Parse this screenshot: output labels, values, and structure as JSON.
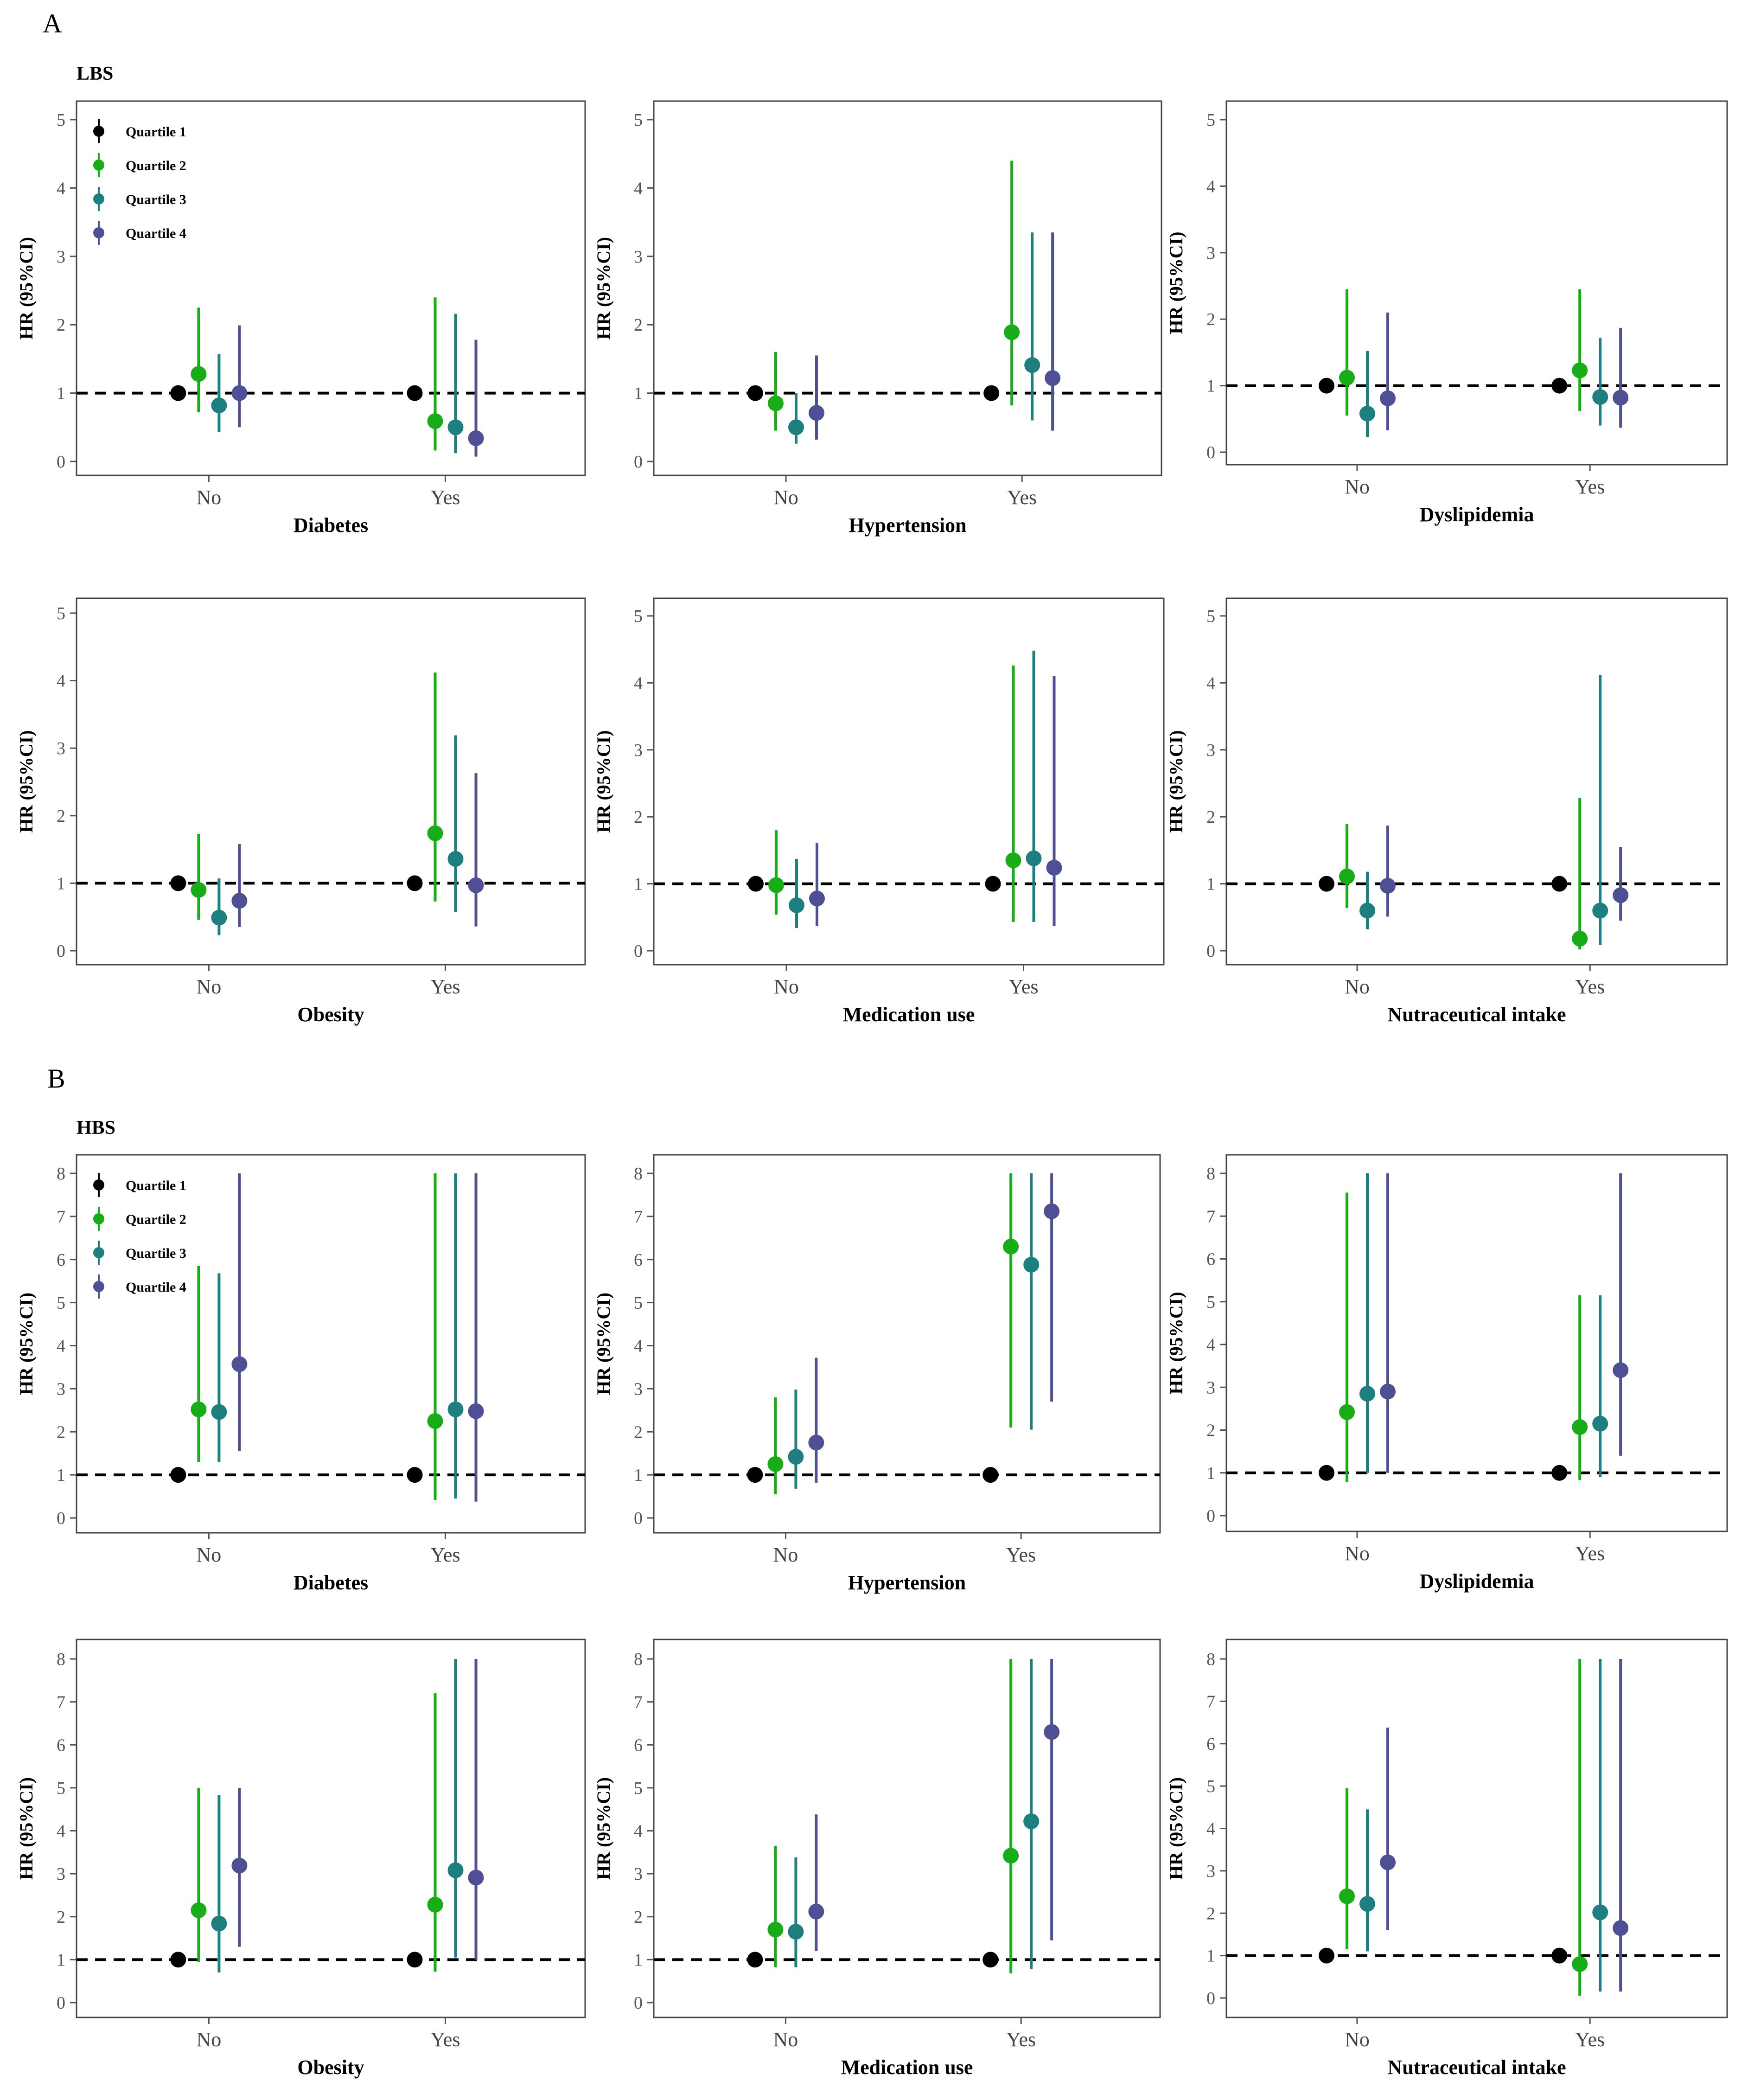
{
  "figure": {
    "panel_a_letter": "A",
    "panel_b_letter": "B",
    "panel_a_subtitle": "LBS",
    "panel_b_subtitle": "HBS"
  },
  "colors": {
    "Quartile 1": "#000000",
    "Quartile 2": "#17ad17",
    "Quartile 3": "#1d7f7f",
    "Quartile 4": "#4f4f96",
    "reference_line": "#000000",
    "frame": "#444444"
  },
  "chart_data": [
    {
      "id": "A-diabetes",
      "group": "A",
      "type": "scatter",
      "xlabel": "Diabetes",
      "ylabel": "HR (95%CI)",
      "ylim": [
        0,
        5
      ],
      "yticks": [
        0,
        1,
        2,
        3,
        4,
        5
      ],
      "categories": [
        "No",
        "Yes"
      ],
      "reference_line": 1,
      "legend": "top-left",
      "series": [
        {
          "name": "Quartile 1",
          "points": [
            {
              "hr": 1.0,
              "lo": 1.0,
              "hi": 1.0
            },
            {
              "hr": 1.0,
              "lo": 1.0,
              "hi": 1.0
            }
          ]
        },
        {
          "name": "Quartile 2",
          "points": [
            {
              "hr": 1.28,
              "lo": 0.72,
              "hi": 2.25
            },
            {
              "hr": 0.59,
              "lo": 0.16,
              "hi": 2.4
            }
          ]
        },
        {
          "name": "Quartile 3",
          "points": [
            {
              "hr": 0.82,
              "lo": 0.43,
              "hi": 1.57
            },
            {
              "hr": 0.5,
              "lo": 0.12,
              "hi": 2.16
            }
          ]
        },
        {
          "name": "Quartile 4",
          "points": [
            {
              "hr": 1.0,
              "lo": 0.5,
              "hi": 1.99
            },
            {
              "hr": 0.34,
              "lo": 0.07,
              "hi": 1.78
            }
          ]
        }
      ]
    },
    {
      "id": "A-hypertension",
      "group": "A",
      "type": "scatter",
      "xlabel": "Hypertension",
      "ylabel": "HR (95%CI)",
      "ylim": [
        0,
        5
      ],
      "yticks": [
        0,
        1,
        2,
        3,
        4,
        5
      ],
      "categories": [
        "No",
        "Yes"
      ],
      "reference_line": 1,
      "series": [
        {
          "name": "Quartile 1",
          "points": [
            {
              "hr": 1.0,
              "lo": 1.0,
              "hi": 1.0
            },
            {
              "hr": 1.0,
              "lo": 1.0,
              "hi": 1.0
            }
          ]
        },
        {
          "name": "Quartile 2",
          "points": [
            {
              "hr": 0.85,
              "lo": 0.45,
              "hi": 1.6
            },
            {
              "hr": 1.89,
              "lo": 0.82,
              "hi": 4.4
            }
          ]
        },
        {
          "name": "Quartile 3",
          "points": [
            {
              "hr": 0.5,
              "lo": 0.26,
              "hi": 1.0
            },
            {
              "hr": 1.41,
              "lo": 0.6,
              "hi": 3.35
            }
          ]
        },
        {
          "name": "Quartile 4",
          "points": [
            {
              "hr": 0.71,
              "lo": 0.32,
              "hi": 1.55
            },
            {
              "hr": 1.22,
              "lo": 0.45,
              "hi": 3.35
            }
          ]
        }
      ]
    },
    {
      "id": "A-dyslipidemia",
      "group": "A",
      "type": "scatter",
      "xlabel": "Dyslipidemia",
      "ylabel": "HR (95%CI)",
      "ylim": [
        0,
        5
      ],
      "yticks": [
        0,
        1,
        2,
        3,
        4,
        5
      ],
      "categories": [
        "No",
        "Yes"
      ],
      "reference_line": 1,
      "series": [
        {
          "name": "Quartile 1",
          "points": [
            {
              "hr": 1.0,
              "lo": 1.0,
              "hi": 1.0
            },
            {
              "hr": 1.0,
              "lo": 1.0,
              "hi": 1.0
            }
          ]
        },
        {
          "name": "Quartile 2",
          "points": [
            {
              "hr": 1.12,
              "lo": 0.55,
              "hi": 2.45
            },
            {
              "hr": 1.23,
              "lo": 0.62,
              "hi": 2.45
            }
          ]
        },
        {
          "name": "Quartile 3",
          "points": [
            {
              "hr": 0.58,
              "lo": 0.23,
              "hi": 1.52
            },
            {
              "hr": 0.83,
              "lo": 0.4,
              "hi": 1.72
            }
          ]
        },
        {
          "name": "Quartile 4",
          "points": [
            {
              "hr": 0.81,
              "lo": 0.33,
              "hi": 2.1
            },
            {
              "hr": 0.82,
              "lo": 0.37,
              "hi": 1.87
            }
          ]
        }
      ]
    },
    {
      "id": "A-obesity",
      "group": "A",
      "type": "scatter",
      "xlabel": "Obesity",
      "ylabel": "HR (95%CI)",
      "ylim": [
        0,
        5
      ],
      "yticks": [
        0,
        1,
        2,
        3,
        4,
        5
      ],
      "categories": [
        "No",
        "Yes"
      ],
      "reference_line": 1,
      "series": [
        {
          "name": "Quartile 1",
          "points": [
            {
              "hr": 1.0,
              "lo": 1.0,
              "hi": 1.0
            },
            {
              "hr": 1.0,
              "lo": 1.0,
              "hi": 1.0
            }
          ]
        },
        {
          "name": "Quartile 2",
          "points": [
            {
              "hr": 0.9,
              "lo": 0.46,
              "hi": 1.73
            },
            {
              "hr": 1.74,
              "lo": 0.73,
              "hi": 4.12
            }
          ]
        },
        {
          "name": "Quartile 3",
          "points": [
            {
              "hr": 0.49,
              "lo": 0.23,
              "hi": 1.07
            },
            {
              "hr": 1.36,
              "lo": 0.57,
              "hi": 3.19
            }
          ]
        },
        {
          "name": "Quartile 4",
          "points": [
            {
              "hr": 0.74,
              "lo": 0.35,
              "hi": 1.58
            },
            {
              "hr": 0.97,
              "lo": 0.36,
              "hi": 2.63
            }
          ]
        }
      ]
    },
    {
      "id": "A-medication",
      "group": "A",
      "type": "scatter",
      "xlabel": "Medication use",
      "ylabel": "HR (95%CI)",
      "ylim": [
        0,
        5
      ],
      "yticks": [
        0,
        1,
        2,
        3,
        4,
        5
      ],
      "categories": [
        "No",
        "Yes"
      ],
      "reference_line": 1,
      "series": [
        {
          "name": "Quartile 1",
          "points": [
            {
              "hr": 1.0,
              "lo": 1.0,
              "hi": 1.0
            },
            {
              "hr": 1.0,
              "lo": 1.0,
              "hi": 1.0
            }
          ]
        },
        {
          "name": "Quartile 2",
          "points": [
            {
              "hr": 0.98,
              "lo": 0.54,
              "hi": 1.8
            },
            {
              "hr": 1.35,
              "lo": 0.43,
              "hi": 4.26
            }
          ]
        },
        {
          "name": "Quartile 3",
          "points": [
            {
              "hr": 0.68,
              "lo": 0.34,
              "hi": 1.37
            },
            {
              "hr": 1.38,
              "lo": 0.43,
              "hi": 4.48
            }
          ]
        },
        {
          "name": "Quartile 4",
          "points": [
            {
              "hr": 0.78,
              "lo": 0.37,
              "hi": 1.61
            },
            {
              "hr": 1.24,
              "lo": 0.37,
              "hi": 4.1
            }
          ]
        }
      ]
    },
    {
      "id": "A-nutraceutical",
      "group": "A",
      "type": "scatter",
      "xlabel": "Nutraceutical intake",
      "ylabel": "HR (95%CI)",
      "ylim": [
        0,
        5
      ],
      "yticks": [
        0,
        1,
        2,
        3,
        4,
        5
      ],
      "categories": [
        "No",
        "Yes"
      ],
      "reference_line": 1,
      "series": [
        {
          "name": "Quartile 1",
          "points": [
            {
              "hr": 1.0,
              "lo": 1.0,
              "hi": 1.0
            },
            {
              "hr": 1.0,
              "lo": 1.0,
              "hi": 1.0
            }
          ]
        },
        {
          "name": "Quartile 2",
          "points": [
            {
              "hr": 1.11,
              "lo": 0.64,
              "hi": 1.89
            },
            {
              "hr": 0.18,
              "lo": 0.02,
              "hi": 2.28
            }
          ]
        },
        {
          "name": "Quartile 3",
          "points": [
            {
              "hr": 0.6,
              "lo": 0.32,
              "hi": 1.18
            },
            {
              "hr": 0.6,
              "lo": 0.09,
              "hi": 4.12
            }
          ]
        },
        {
          "name": "Quartile 4",
          "points": [
            {
              "hr": 0.97,
              "lo": 0.51,
              "hi": 1.87
            },
            {
              "hr": 0.83,
              "lo": 0.45,
              "hi": 1.55
            }
          ]
        }
      ]
    },
    {
      "id": "B-diabetes",
      "group": "B",
      "type": "scatter",
      "xlabel": "Diabetes",
      "ylabel": "HR (95%CI)",
      "ylim": [
        0,
        8
      ],
      "yticks": [
        0,
        1,
        2,
        3,
        4,
        5,
        6,
        7,
        8
      ],
      "categories": [
        "No",
        "Yes"
      ],
      "reference_line": 1,
      "legend": "top-left",
      "series": [
        {
          "name": "Quartile 1",
          "points": [
            {
              "hr": 1.0,
              "lo": 1.0,
              "hi": 1.0
            },
            {
              "hr": 1.0,
              "lo": 1.0,
              "hi": 1.0
            }
          ]
        },
        {
          "name": "Quartile 2",
          "points": [
            {
              "hr": 2.52,
              "lo": 1.3,
              "hi": 5.85
            },
            {
              "hr": 2.25,
              "lo": 0.42,
              "hi": 8.0
            }
          ]
        },
        {
          "name": "Quartile 3",
          "points": [
            {
              "hr": 2.46,
              "lo": 1.3,
              "hi": 5.68
            },
            {
              "hr": 2.52,
              "lo": 0.45,
              "hi": 8.0
            }
          ]
        },
        {
          "name": "Quartile 4",
          "points": [
            {
              "hr": 3.57,
              "lo": 1.55,
              "hi": 8.0
            },
            {
              "hr": 2.48,
              "lo": 0.38,
              "hi": 8.0
            }
          ]
        }
      ]
    },
    {
      "id": "B-hypertension",
      "group": "B",
      "type": "scatter",
      "xlabel": "Hypertension",
      "ylabel": "HR (95%CI)",
      "ylim": [
        0,
        8
      ],
      "yticks": [
        0,
        1,
        2,
        3,
        4,
        5,
        6,
        7,
        8
      ],
      "categories": [
        "No",
        "Yes"
      ],
      "reference_line": 1,
      "series": [
        {
          "name": "Quartile 1",
          "points": [
            {
              "hr": 1.0,
              "lo": 1.0,
              "hi": 1.0
            },
            {
              "hr": 1.0,
              "lo": 1.0,
              "hi": 1.0
            }
          ]
        },
        {
          "name": "Quartile 2",
          "points": [
            {
              "hr": 1.25,
              "lo": 0.55,
              "hi": 2.8
            },
            {
              "hr": 6.3,
              "lo": 2.1,
              "hi": 8.0
            }
          ]
        },
        {
          "name": "Quartile 3",
          "points": [
            {
              "hr": 1.42,
              "lo": 0.68,
              "hi": 2.98
            },
            {
              "hr": 5.88,
              "lo": 2.05,
              "hi": 8.0
            }
          ]
        },
        {
          "name": "Quartile 4",
          "points": [
            {
              "hr": 1.75,
              "lo": 0.82,
              "hi": 3.72
            },
            {
              "hr": 7.12,
              "lo": 2.7,
              "hi": 8.0
            }
          ]
        }
      ]
    },
    {
      "id": "B-dyslipidemia",
      "group": "B",
      "type": "scatter",
      "xlabel": "Dyslipidemia",
      "ylabel": "HR (95%CI)",
      "ylim": [
        0,
        8
      ],
      "yticks": [
        0,
        1,
        2,
        3,
        4,
        5,
        6,
        7,
        8
      ],
      "categories": [
        "No",
        "Yes"
      ],
      "reference_line": 1,
      "series": [
        {
          "name": "Quartile 1",
          "points": [
            {
              "hr": 1.0,
              "lo": 1.0,
              "hi": 1.0
            },
            {
              "hr": 1.0,
              "lo": 1.0,
              "hi": 1.0
            }
          ]
        },
        {
          "name": "Quartile 2",
          "points": [
            {
              "hr": 2.42,
              "lo": 0.78,
              "hi": 7.55
            },
            {
              "hr": 2.07,
              "lo": 0.83,
              "hi": 5.15
            }
          ]
        },
        {
          "name": "Quartile 3",
          "points": [
            {
              "hr": 2.85,
              "lo": 1.0,
              "hi": 8.0
            },
            {
              "hr": 2.15,
              "lo": 0.9,
              "hi": 5.15
            }
          ]
        },
        {
          "name": "Quartile 4",
          "points": [
            {
              "hr": 2.9,
              "lo": 1.0,
              "hi": 8.0
            },
            {
              "hr": 3.4,
              "lo": 1.4,
              "hi": 8.0
            }
          ]
        }
      ]
    },
    {
      "id": "B-obesity",
      "group": "B",
      "type": "scatter",
      "xlabel": "Obesity",
      "ylabel": "HR (95%CI)",
      "ylim": [
        0,
        8
      ],
      "yticks": [
        0,
        1,
        2,
        3,
        4,
        5,
        6,
        7,
        8
      ],
      "categories": [
        "No",
        "Yes"
      ],
      "reference_line": 1,
      "series": [
        {
          "name": "Quartile 1",
          "points": [
            {
              "hr": 1.0,
              "lo": 1.0,
              "hi": 1.0
            },
            {
              "hr": 1.0,
              "lo": 1.0,
              "hi": 1.0
            }
          ]
        },
        {
          "name": "Quartile 2",
          "points": [
            {
              "hr": 2.15,
              "lo": 0.95,
              "hi": 5.0
            },
            {
              "hr": 2.28,
              "lo": 0.72,
              "hi": 7.2
            }
          ]
        },
        {
          "name": "Quartile 3",
          "points": [
            {
              "hr": 1.84,
              "lo": 0.7,
              "hi": 4.83
            },
            {
              "hr": 3.08,
              "lo": 1.05,
              "hi": 8.0
            }
          ]
        },
        {
          "name": "Quartile 4",
          "points": [
            {
              "hr": 3.19,
              "lo": 1.3,
              "hi": 5.0
            },
            {
              "hr": 2.91,
              "lo": 1.0,
              "hi": 8.0
            }
          ]
        }
      ]
    },
    {
      "id": "B-medication",
      "group": "B",
      "type": "scatter",
      "xlabel": "Medication use",
      "ylabel": "HR (95%CI)",
      "ylim": [
        0,
        8
      ],
      "yticks": [
        0,
        1,
        2,
        3,
        4,
        5,
        6,
        7,
        8
      ],
      "categories": [
        "No",
        "Yes"
      ],
      "reference_line": 1,
      "series": [
        {
          "name": "Quartile 1",
          "points": [
            {
              "hr": 1.0,
              "lo": 1.0,
              "hi": 1.0
            },
            {
              "hr": 1.0,
              "lo": 1.0,
              "hi": 1.0
            }
          ]
        },
        {
          "name": "Quartile 2",
          "points": [
            {
              "hr": 1.7,
              "lo": 0.82,
              "hi": 3.65
            },
            {
              "hr": 3.42,
              "lo": 0.68,
              "hi": 8.0
            }
          ]
        },
        {
          "name": "Quartile 3",
          "points": [
            {
              "hr": 1.65,
              "lo": 0.82,
              "hi": 3.38
            },
            {
              "hr": 4.22,
              "lo": 0.78,
              "hi": 8.0
            }
          ]
        },
        {
          "name": "Quartile 4",
          "points": [
            {
              "hr": 2.12,
              "lo": 1.2,
              "hi": 4.38
            },
            {
              "hr": 6.3,
              "lo": 1.45,
              "hi": 8.0
            }
          ]
        }
      ]
    },
    {
      "id": "B-nutraceutical",
      "group": "B",
      "type": "scatter",
      "xlabel": "Nutraceutical intake",
      "ylabel": "HR (95%CI)",
      "ylim": [
        0,
        8
      ],
      "yticks": [
        0,
        1,
        2,
        3,
        4,
        5,
        6,
        7,
        8
      ],
      "categories": [
        "No",
        "Yes"
      ],
      "reference_line": 1,
      "series": [
        {
          "name": "Quartile 1",
          "points": [
            {
              "hr": 1.0,
              "lo": 1.0,
              "hi": 1.0
            },
            {
              "hr": 1.0,
              "lo": 1.0,
              "hi": 1.0
            }
          ]
        },
        {
          "name": "Quartile 2",
          "points": [
            {
              "hr": 2.4,
              "lo": 1.15,
              "hi": 4.95
            },
            {
              "hr": 0.8,
              "lo": 0.05,
              "hi": 8.0
            }
          ]
        },
        {
          "name": "Quartile 3",
          "points": [
            {
              "hr": 2.22,
              "lo": 1.1,
              "hi": 4.45
            },
            {
              "hr": 2.02,
              "lo": 0.15,
              "hi": 8.0
            }
          ]
        },
        {
          "name": "Quartile 4",
          "points": [
            {
              "hr": 3.2,
              "lo": 1.6,
              "hi": 6.38
            },
            {
              "hr": 1.65,
              "lo": 0.15,
              "hi": 8.0
            }
          ]
        }
      ]
    }
  ]
}
